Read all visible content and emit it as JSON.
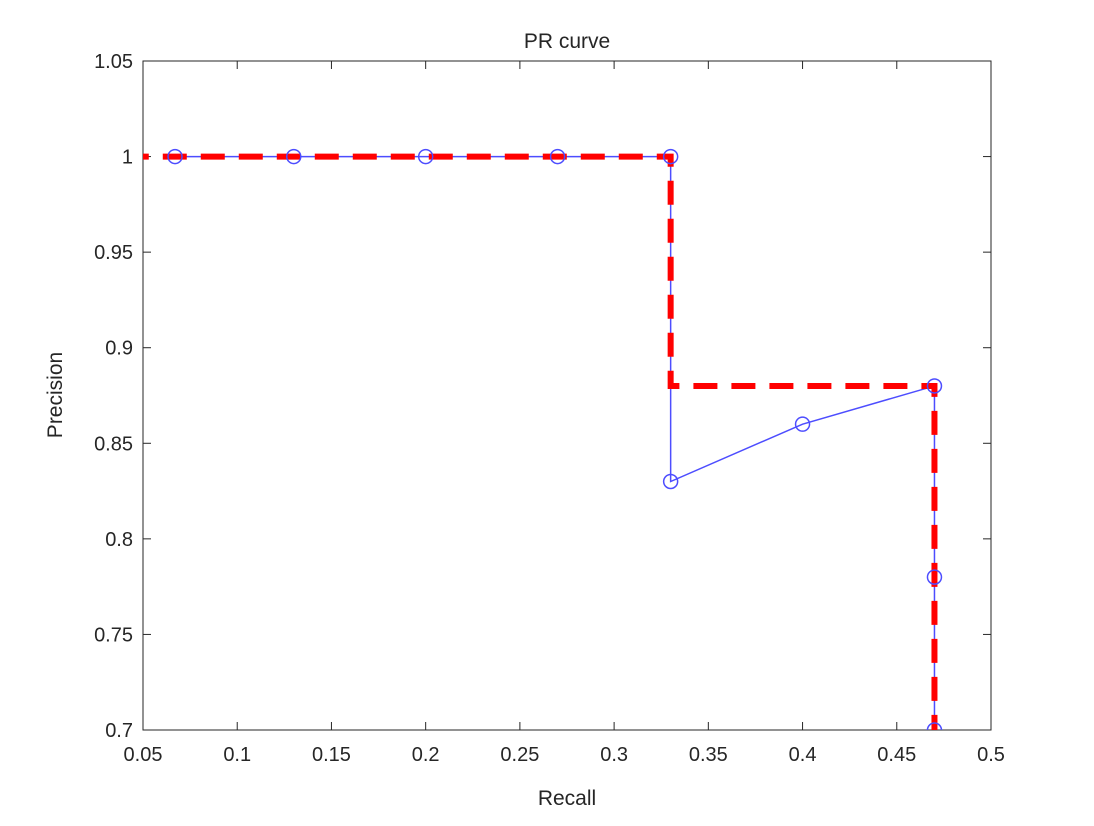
{
  "chart_data": {
    "type": "line",
    "title": "PR curve",
    "xlabel": "Recall",
    "ylabel": "Precision",
    "xlim": [
      0.05,
      0.5
    ],
    "ylim": [
      0.7,
      1.05
    ],
    "xticks": [
      0.05,
      0.1,
      0.15,
      0.2,
      0.25,
      0.3,
      0.35,
      0.4,
      0.45,
      0.5
    ],
    "xtick_labels": [
      "0.05",
      "0.1",
      "0.15",
      "0.2",
      "0.25",
      "0.3",
      "0.35",
      "0.4",
      "0.45",
      "0.5"
    ],
    "yticks": [
      0.7,
      0.75,
      0.8,
      0.85,
      0.9,
      0.95,
      1,
      1.05
    ],
    "ytick_labels": [
      "0.7",
      "0.75",
      "0.8",
      "0.85",
      "0.9",
      "0.95",
      "1",
      "1.05"
    ],
    "grid": false,
    "series": [
      {
        "style": "solid line with circle markers",
        "color": "#4d4dff",
        "x": [
          0.067,
          0.13,
          0.2,
          0.27,
          0.33,
          0.33,
          0.4,
          0.47,
          0.47,
          0.47
        ],
        "y": [
          1,
          1,
          1,
          1,
          1,
          0.83,
          0.86,
          0.88,
          0.78,
          0.7
        ]
      },
      {
        "style": "dashed line",
        "color": "#ff0000",
        "x": [
          0,
          0.33,
          0.33,
          0.47,
          0.47
        ],
        "y": [
          1,
          1,
          0.88,
          0.88,
          0.7
        ]
      }
    ]
  }
}
